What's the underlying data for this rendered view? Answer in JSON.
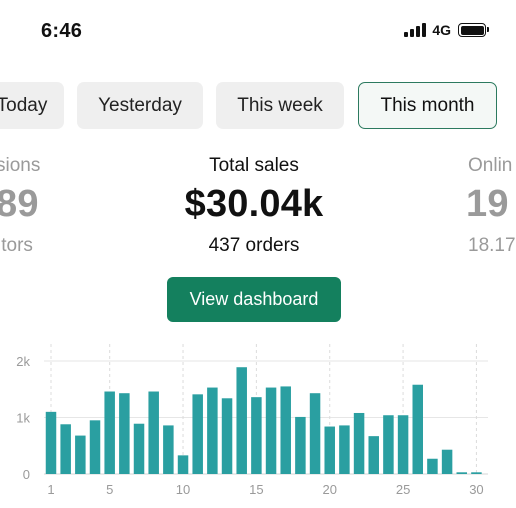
{
  "status_bar": {
    "time": "6:46",
    "network": "4G"
  },
  "tabs": [
    {
      "label": "Today",
      "active": false
    },
    {
      "label": "Yesterday",
      "active": false
    },
    {
      "label": "This week",
      "active": false
    },
    {
      "label": "This month",
      "active": true
    }
  ],
  "stats": {
    "left": {
      "label": "sions",
      "value": "89",
      "sub": "itors"
    },
    "center": {
      "label": "Total sales",
      "value": "$30.04k",
      "sub": "437 orders"
    },
    "right": {
      "label": "Onlin",
      "value": "19",
      "sub": "18.17"
    }
  },
  "cta": {
    "label": "View dashboard"
  },
  "chart_data": {
    "type": "bar",
    "bar_color": "#2a9fa1",
    "title": "",
    "xlabel": "",
    "ylabel": "",
    "ylim": [
      0,
      2000
    ],
    "yticks": [
      {
        "value": 0,
        "label": "0"
      },
      {
        "value": 1000,
        "label": "1k"
      },
      {
        "value": 2000,
        "label": "2k"
      }
    ],
    "x": [
      1,
      2,
      3,
      4,
      5,
      6,
      7,
      8,
      9,
      10,
      11,
      12,
      13,
      14,
      15,
      16,
      17,
      18,
      19,
      20,
      21,
      22,
      23,
      24,
      25,
      26,
      27,
      28,
      29,
      30
    ],
    "xticks": [
      1,
      5,
      10,
      15,
      20,
      25,
      30
    ],
    "values": [
      1100,
      880,
      680,
      950,
      1460,
      1430,
      890,
      1460,
      860,
      330,
      1410,
      1530,
      1340,
      1890,
      1360,
      1530,
      1550,
      1010,
      1430,
      840,
      860,
      1080,
      670,
      1040,
      1040,
      1580,
      270,
      430,
      30,
      30
    ],
    "grid": true
  }
}
